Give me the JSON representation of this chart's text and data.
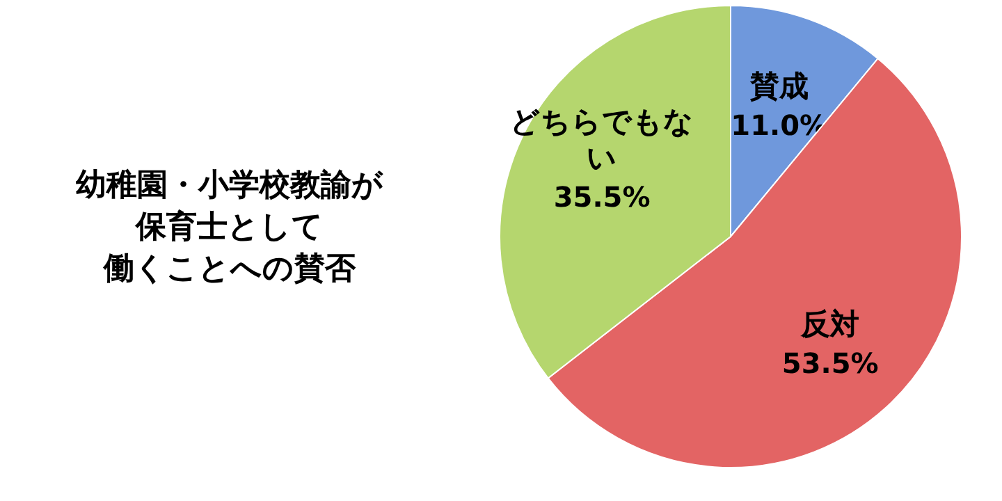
{
  "chart_data": {
    "type": "pie",
    "title": "幼稚園・小学校教諭が保育士として働くことへの賛否",
    "categories": [
      "賛成",
      "反対",
      "どちらでもない"
    ],
    "values": [
      11.0,
      53.5,
      35.5
    ],
    "value_labels": [
      "11.0%",
      "53.5%",
      "35.5%"
    ],
    "colors": [
      "#6f98dc",
      "#e36464",
      "#b5d66e"
    ]
  }
}
